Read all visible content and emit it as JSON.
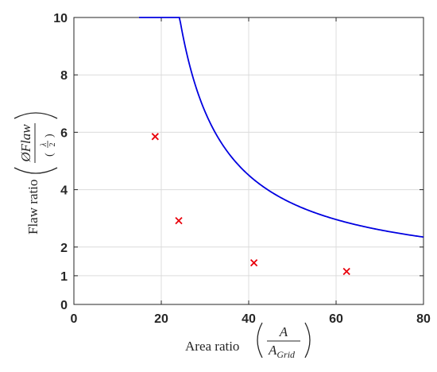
{
  "chart_data": {
    "type": "scatter",
    "xlim": [
      0,
      80
    ],
    "ylim": [
      0,
      10
    ],
    "x_ticks": [
      0,
      20,
      40,
      60,
      80
    ],
    "y_ticks": [
      0,
      1,
      2,
      4,
      6,
      8,
      10
    ],
    "grid": true,
    "xlabel": {
      "text": "Area ratio",
      "numerator": "A",
      "denominator_base": "A",
      "denominator_sub": "Grid"
    },
    "ylabel": {
      "text": "Flaw ratio",
      "numerator": "ØFlaw",
      "denominator_num": "λ",
      "denominator_den": "2"
    },
    "series": [
      {
        "kind": "markers",
        "marker": "x",
        "color": "#e8000b",
        "x": [
          18.6,
          24.0,
          41.2,
          62.4
        ],
        "y": [
          5.85,
          2.92,
          1.45,
          1.15
        ]
      },
      {
        "kind": "line",
        "color": "#0000e0",
        "model": {
          "a": 1.03,
          "b": 9.5,
          "x0": 14.2,
          "x1": 80
        },
        "x_range": [
          14.9,
          80
        ]
      }
    ]
  }
}
